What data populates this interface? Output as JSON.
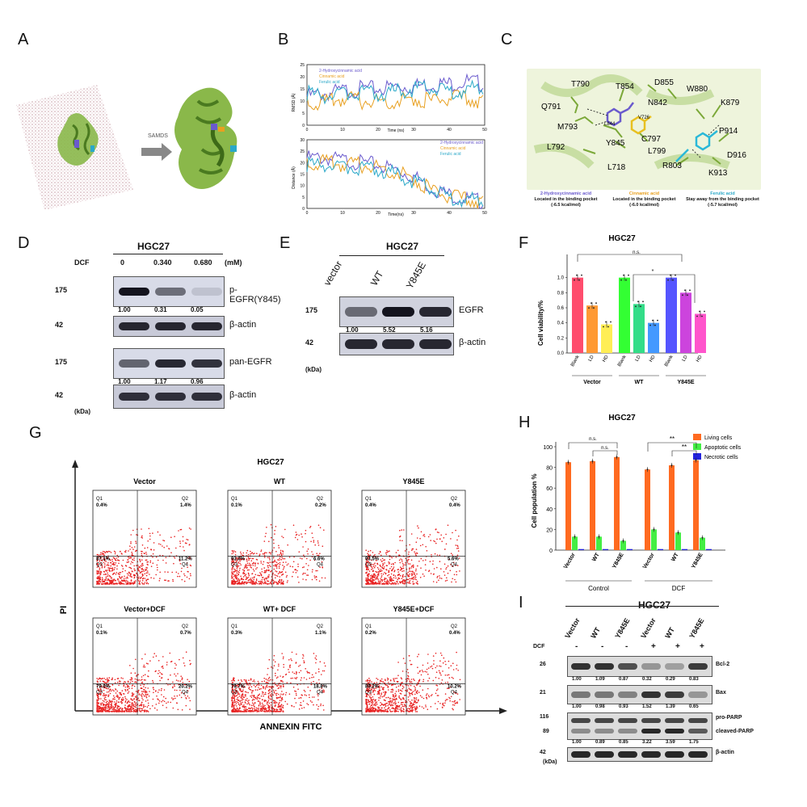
{
  "panels": [
    "A",
    "B",
    "C",
    "D",
    "E",
    "F",
    "G",
    "H",
    "I"
  ],
  "panel_a": {
    "arrow_label": "SAMDS"
  },
  "panel_b": {
    "top": {
      "ylabel": "RMSD (Å)",
      "xlabel": "Time (ns)",
      "legend": [
        "2-Hydroxycinnamic acid",
        "Cinnamic acid",
        "Ferulic acid"
      ],
      "xticks": [
        "0",
        "10",
        "20",
        "30",
        "40",
        "50"
      ],
      "yticks": [
        "0",
        "5",
        "10",
        "15",
        "20",
        "25"
      ]
    },
    "bottom": {
      "ylabel": "Distance (Å)",
      "xlabel": "Time(ns)",
      "legend": [
        "2-Hydroxycinnamic acid",
        "Cinnamic acid",
        "Ferulic acid"
      ],
      "xticks": [
        "0",
        "10",
        "20",
        "30",
        "40",
        "50"
      ],
      "yticks": [
        "0",
        "5",
        "10",
        "15",
        "20",
        "25",
        "30"
      ]
    }
  },
  "panel_c": {
    "residues": [
      "T790",
      "T854",
      "D855",
      "W880",
      "Q791",
      "N842",
      "K879",
      "M793",
      "L844",
      "V726",
      "C797",
      "P914",
      "L792",
      "Y845",
      "L799",
      "D916",
      "L718",
      "R803",
      "K913"
    ],
    "captions": [
      {
        "name": "2-Hydroxycinnamic acid",
        "l1": "Located in the binding pocket",
        "l2": "(-6.5 kcal/mol)",
        "color": "#6a5acd"
      },
      {
        "name": "Cinnamic acid",
        "l1": "Located in the binding pocket",
        "l2": "(-6.0 kcal/mol)",
        "color": "#e8a020"
      },
      {
        "name": "Ferulic acid",
        "l1": "Stay away from the binding pocket",
        "l2": "(-5.7 kcal/mol)",
        "color": "#2aa8c8"
      }
    ]
  },
  "panel_d": {
    "cell": "HGC27",
    "dcf_label": "DCF",
    "unit": "(mM)",
    "doses": [
      "0",
      "0.340",
      "0.680"
    ],
    "rows": [
      {
        "mw": "175",
        "label": "p-EGFR(Y845)",
        "values": [
          "1.00",
          "0.31",
          "0.05"
        ]
      },
      {
        "mw": "42",
        "label": "β-actin"
      },
      {
        "mw": "175",
        "label": "pan-EGFR",
        "values": [
          "1.00",
          "1.17",
          "0.96"
        ]
      },
      {
        "mw": "42",
        "label": "β-actin"
      }
    ],
    "kda": "(kDa)"
  },
  "panel_e": {
    "cell": "HGC27",
    "lanes": [
      "vector",
      "WT",
      "Y845E"
    ],
    "rows": [
      {
        "mw": "175",
        "label": "EGFR",
        "values": [
          "1.00",
          "5.52",
          "5.16"
        ]
      },
      {
        "mw": "42",
        "label": "β-actin"
      }
    ],
    "kda": "(kDa)"
  },
  "panel_f": {
    "title": "HGC27",
    "ylabel": "Cell viability/%",
    "ns": "n.s.",
    "star": "*",
    "yticks": [
      "0.0",
      "0.2",
      "0.4",
      "0.6",
      "0.8",
      "1.0"
    ],
    "groups": [
      "Vector",
      "WT",
      "Y845E"
    ],
    "bar_labels": [
      "Blank",
      "LD",
      "HD"
    ]
  },
  "panel_g": {
    "title": "HGC27",
    "ylabel": "PI",
    "xlabel": "ANNEXIN FITC",
    "plots": [
      {
        "title": "Vector",
        "q1": "0.4%",
        "q2": "1.4%",
        "q3": "87.1%",
        "q4": "11.2%"
      },
      {
        "title": "WT",
        "q1": "0.1%",
        "q2": "0.2%",
        "q3": "93.0%",
        "q4": "6.6%"
      },
      {
        "title": "Y845E",
        "q1": "0.4%",
        "q2": "0.4%",
        "q3": "93.5%",
        "q4": "5.6%"
      },
      {
        "title": "Vector+DCF",
        "q1": "0.1%",
        "q2": "0.7%",
        "q3": "79.0%",
        "q4": "20.2%"
      },
      {
        "title": "WT+ DCF",
        "q1": "0.3%",
        "q2": "1.1%",
        "q3": "79.7%",
        "q4": "18.8%"
      },
      {
        "title": "Y845E+DCF",
        "q1": "0.2%",
        "q2": "0.4%",
        "q3": "89.2%",
        "q4": "10.2%"
      }
    ],
    "quadrants": [
      "Q1",
      "Q2",
      "Q3",
      "Q4"
    ]
  },
  "panel_h": {
    "title": "HGC27",
    "ylabel": "Cell population %",
    "legend": [
      "Living cells",
      "Apoptotic cells",
      "Necrotic cells"
    ],
    "yticks": [
      "0",
      "20",
      "40",
      "60",
      "80",
      "100"
    ],
    "ns": "n.s.",
    "stars": "**",
    "groups": [
      "Vector",
      "WT",
      "Y845E",
      "Vector",
      "WT",
      "Y845E"
    ],
    "conditions": [
      "Control",
      "DCF"
    ]
  },
  "panel_i": {
    "cell": "HGC27",
    "dcf_label": "DCF",
    "lanes": [
      "Vector",
      "WT",
      "Y845E",
      "Vector",
      "WT",
      "Y845E"
    ],
    "signs": [
      "-",
      "-",
      "-",
      "+",
      "+",
      "+"
    ],
    "rows": [
      {
        "mw": "26",
        "label": "Bcl-2",
        "values": [
          "1.00",
          "1.09",
          "0.87",
          "0.32",
          "0.29",
          "0.83"
        ]
      },
      {
        "mw": "21",
        "label": "Bax",
        "values": [
          "1.00",
          "0.98",
          "0.93",
          "1.52",
          "1.39",
          "0.65"
        ]
      },
      {
        "mw": "116",
        "mw2": "89",
        "label": "pro-PARP",
        "label2": "cleaved-PARP",
        "values": [
          "1.00",
          "0.89",
          "0.85",
          "3.22",
          "3.59",
          "1.75"
        ]
      },
      {
        "mw": "42",
        "label": "β-actin"
      }
    ],
    "kda": "(kDa)"
  },
  "chart_data": [
    {
      "type": "line",
      "title": "",
      "xlabel": "Time (ns)",
      "ylabel": "RMSD (Å)",
      "xlim": [
        0,
        50
      ],
      "ylim": [
        0,
        25
      ],
      "series": [
        {
          "name": "2-Hydroxycinnamic acid",
          "values": [
            12,
            13,
            14,
            15,
            15,
            16,
            16,
            17,
            17,
            18,
            17
          ]
        },
        {
          "name": "Cinnamic acid",
          "values": [
            10,
            9,
            11,
            10,
            10,
            10,
            11,
            10,
            11,
            11,
            10
          ]
        },
        {
          "name": "Ferulic acid",
          "values": [
            13,
            12,
            13,
            14,
            13,
            14,
            15,
            15,
            14,
            15,
            15
          ]
        }
      ],
      "x": [
        0,
        5,
        10,
        15,
        20,
        25,
        30,
        35,
        40,
        45,
        50
      ]
    },
    {
      "type": "line",
      "title": "",
      "xlabel": "Time(ns)",
      "ylabel": "Distance (Å)",
      "xlim": [
        0,
        50
      ],
      "ylim": [
        0,
        30
      ],
      "x": [
        0,
        5,
        10,
        15,
        20,
        25,
        30,
        35,
        40,
        45,
        50
      ],
      "series": [
        {
          "name": "2-Hydroxycinnamic acid",
          "values": [
            22,
            22,
            21,
            20,
            19,
            17,
            14,
            9,
            6,
            4,
            3
          ]
        },
        {
          "name": "Cinnamic acid",
          "values": [
            20,
            20,
            19,
            19,
            18,
            16,
            13,
            8,
            5,
            4,
            3
          ]
        },
        {
          "name": "Ferulic acid",
          "values": [
            19,
            19,
            18,
            18,
            17,
            15,
            12,
            8,
            5,
            4,
            3
          ]
        }
      ]
    },
    {
      "type": "bar",
      "title": "HGC27",
      "ylabel": "Cell viability/%",
      "ylim": [
        0,
        1.2
      ],
      "categories": [
        "Blank",
        "LD",
        "HD",
        "Blank",
        "LD",
        "HD",
        "Blank",
        "LD",
        "HD"
      ],
      "values": [
        1.0,
        0.63,
        0.38,
        1.0,
        0.65,
        0.4,
        1.0,
        0.8,
        0.52
      ],
      "colors": [
        "#ff4d6d",
        "#ff9933",
        "#ffee55",
        "#33ff33",
        "#33dd88",
        "#4499ff",
        "#5555ff",
        "#cc44dd",
        "#ff55cc"
      ]
    },
    {
      "type": "bar",
      "title": "HGC27",
      "ylabel": "Cell population %",
      "ylim": [
        0,
        100
      ],
      "categories": [
        "Vector",
        "WT",
        "Y845E",
        "Vector",
        "WT",
        "Y845E"
      ],
      "series": [
        {
          "name": "Living cells",
          "values": [
            85,
            86,
            90,
            78,
            82,
            87
          ]
        },
        {
          "name": "Apoptotic cells",
          "values": [
            13,
            13,
            9,
            20,
            17,
            12
          ]
        },
        {
          "name": "Necrotic cells",
          "values": [
            1,
            1,
            1,
            1,
            1,
            1
          ]
        }
      ]
    }
  ]
}
